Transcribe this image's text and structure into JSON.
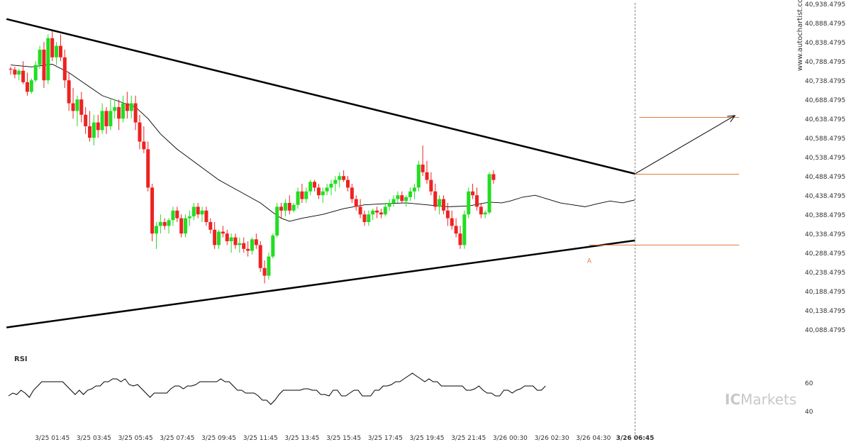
{
  "watermark": "www.autochartist.com",
  "brand": {
    "ic": "IC",
    "rest": "Markets",
    "color": "#c8c8c8"
  },
  "colors": {
    "bull": "#22dd22",
    "bear": "#ee2222",
    "trendline": "#000000",
    "level": "#e07b39",
    "ma": "#000000",
    "rsi": "#000000",
    "current_marker": "#888888"
  },
  "chart_data": {
    "type": "candlestick",
    "title": "",
    "ylim": [
      40080,
      40940
    ],
    "y_ticks": [
      "40,938.4795",
      "40,888.4795",
      "40,838.4795",
      "40,788.4795",
      "40,738.4795",
      "40,688.4795",
      "40,638.4795",
      "40,588.4795",
      "40,538.4795",
      "40,488.4795",
      "40,438.4795",
      "40,388.4795",
      "40,338.4795",
      "40,288.4795",
      "40,238.4795",
      "40,188.4795",
      "40,138.4795",
      "40,088.4795"
    ],
    "y_tick_values": [
      40938.4795,
      40888.4795,
      40838.4795,
      40788.4795,
      40738.4795,
      40688.4795,
      40638.4795,
      40588.4795,
      40538.4795,
      40488.4795,
      40438.4795,
      40388.4795,
      40338.4795,
      40288.4795,
      40238.4795,
      40188.4795,
      40138.4795,
      40088.4795
    ],
    "x_labels": [
      "3/25 01:45",
      "3/25 03:45",
      "3/25 05:45",
      "3/25 07:45",
      "3/25 09:45",
      "3/25 11:45",
      "3/25 13:45",
      "3/25 15:45",
      "3/25 17:45",
      "3/25 19:45",
      "3/25 21:45",
      "3/26 00:30",
      "3/26 02:30",
      "3/26 04:30",
      "3/26 06:45"
    ],
    "x_label_index": [
      10,
      20,
      30,
      40,
      50,
      60,
      70,
      80,
      90,
      100,
      110,
      120,
      130,
      140,
      150
    ],
    "candles": [
      [
        40770,
        40775,
        40755,
        40768
      ],
      [
        40768,
        40775,
        40745,
        40755
      ],
      [
        40755,
        40770,
        40740,
        40765
      ],
      [
        40765,
        40790,
        40730,
        40735
      ],
      [
        40735,
        40760,
        40700,
        40710
      ],
      [
        40710,
        40745,
        40705,
        40740
      ],
      [
        40740,
        40790,
        40735,
        40780
      ],
      [
        40780,
        40830,
        40770,
        40820
      ],
      [
        40820,
        40840,
        40720,
        40740
      ],
      [
        40740,
        40860,
        40730,
        40850
      ],
      [
        40850,
        40870,
        40790,
        40800
      ],
      [
        40800,
        40840,
        40780,
        40830
      ],
      [
        40830,
        40860,
        40790,
        40800
      ],
      [
        40800,
        40820,
        40720,
        40740
      ],
      [
        40740,
        40760,
        40660,
        40680
      ],
      [
        40680,
        40720,
        40640,
        40660
      ],
      [
        40660,
        40700,
        40620,
        40690
      ],
      [
        40690,
        40710,
        40630,
        40650
      ],
      [
        40650,
        40670,
        40600,
        40620
      ],
      [
        40620,
        40660,
        40580,
        40590
      ],
      [
        40590,
        40650,
        40570,
        40630
      ],
      [
        40630,
        40650,
        40590,
        40610
      ],
      [
        40610,
        40680,
        40600,
        40660
      ],
      [
        40660,
        40670,
        40600,
        40620
      ],
      [
        40620,
        40690,
        40610,
        40660
      ],
      [
        40660,
        40690,
        40640,
        40670
      ],
      [
        40670,
        40690,
        40610,
        40640
      ],
      [
        40640,
        40700,
        40630,
        40680
      ],
      [
        40680,
        40710,
        40640,
        40660
      ],
      [
        40660,
        40700,
        40640,
        40680
      ],
      [
        40680,
        40700,
        40610,
        40630
      ],
      [
        40630,
        40650,
        40560,
        40580
      ],
      [
        40580,
        40620,
        40550,
        40560
      ],
      [
        40560,
        40580,
        40450,
        40460
      ],
      [
        40460,
        40470,
        40320,
        40340
      ],
      [
        40340,
        40370,
        40300,
        40360
      ],
      [
        40360,
        40390,
        40340,
        40370
      ],
      [
        40370,
        40380,
        40350,
        40360
      ],
      [
        40360,
        40380,
        40340,
        40375
      ],
      [
        40375,
        40410,
        40360,
        40400
      ],
      [
        40400,
        40410,
        40370,
        40380
      ],
      [
        40380,
        40390,
        40330,
        40340
      ],
      [
        40340,
        40390,
        40330,
        40380
      ],
      [
        40380,
        40400,
        40360,
        40385
      ],
      [
        40385,
        40420,
        40375,
        40410
      ],
      [
        40410,
        40420,
        40380,
        40390
      ],
      [
        40390,
        40410,
        40370,
        40400
      ],
      [
        40400,
        40410,
        40360,
        40370
      ],
      [
        40370,
        40380,
        40340,
        40350
      ],
      [
        40350,
        40370,
        40300,
        40310
      ],
      [
        40310,
        40350,
        40300,
        40345
      ],
      [
        40345,
        40360,
        40330,
        40340
      ],
      [
        40340,
        40350,
        40310,
        40320
      ],
      [
        40320,
        40340,
        40290,
        40330
      ],
      [
        40330,
        40340,
        40300,
        40310
      ],
      [
        40310,
        40330,
        40290,
        40315
      ],
      [
        40315,
        40330,
        40290,
        40300
      ],
      [
        40300,
        40320,
        40280,
        40295
      ],
      [
        40295,
        40330,
        40285,
        40325
      ],
      [
        40325,
        40340,
        40300,
        40310
      ],
      [
        40310,
        40320,
        40240,
        40250
      ],
      [
        40250,
        40270,
        40210,
        40230
      ],
      [
        40230,
        40290,
        40220,
        40280
      ],
      [
        40280,
        40340,
        40275,
        40335
      ],
      [
        40335,
        40420,
        40330,
        40410
      ],
      [
        40410,
        40420,
        40380,
        40400
      ],
      [
        40400,
        40430,
        40385,
        40420
      ],
      [
        40420,
        40440,
        40390,
        40400
      ],
      [
        40400,
        40420,
        40395,
        40415
      ],
      [
        40415,
        40460,
        40405,
        40450
      ],
      [
        40450,
        40470,
        40420,
        40430
      ],
      [
        40430,
        40460,
        40420,
        40450
      ],
      [
        40450,
        40480,
        40440,
        40475
      ],
      [
        40475,
        40480,
        40450,
        40460
      ],
      [
        40460,
        40470,
        40430,
        40440
      ],
      [
        40440,
        40460,
        40420,
        40450
      ],
      [
        40450,
        40470,
        40440,
        40460
      ],
      [
        40460,
        40480,
        40440,
        40470
      ],
      [
        40470,
        40490,
        40450,
        40480
      ],
      [
        40480,
        40500,
        40460,
        40490
      ],
      [
        40490,
        40505,
        40475,
        40480
      ],
      [
        40480,
        40490,
        40450,
        40460
      ],
      [
        40460,
        40470,
        40420,
        40430
      ],
      [
        40430,
        40440,
        40400,
        40410
      ],
      [
        40410,
        40430,
        40380,
        40390
      ],
      [
        40390,
        40400,
        40360,
        40370
      ],
      [
        40370,
        40400,
        40360,
        40390
      ],
      [
        40390,
        40405,
        40375,
        40400
      ],
      [
        40400,
        40410,
        40380,
        40395
      ],
      [
        40395,
        40405,
        40380,
        40390
      ],
      [
        40390,
        40420,
        40385,
        40410
      ],
      [
        40410,
        40430,
        40400,
        40420
      ],
      [
        40420,
        40440,
        40410,
        40430
      ],
      [
        40430,
        40450,
        40420,
        40440
      ],
      [
        40440,
        40450,
        40420,
        40425
      ],
      [
        40425,
        40440,
        40410,
        40435
      ],
      [
        40435,
        40460,
        40425,
        40450
      ],
      [
        40450,
        40470,
        40430,
        40460
      ],
      [
        40460,
        40530,
        40450,
        40520
      ],
      [
        40520,
        40570,
        40490,
        40500
      ],
      [
        40500,
        40530,
        40470,
        40480
      ],
      [
        40480,
        40500,
        40440,
        40450
      ],
      [
        40450,
        40470,
        40400,
        40410
      ],
      [
        40410,
        40440,
        40390,
        40430
      ],
      [
        40430,
        40440,
        40390,
        40400
      ],
      [
        40400,
        40420,
        40360,
        40380
      ],
      [
        40380,
        40400,
        40350,
        40360
      ],
      [
        40360,
        40380,
        40330,
        40340
      ],
      [
        40340,
        40360,
        40300,
        40310
      ],
      [
        40310,
        40400,
        40300,
        40390
      ],
      [
        40390,
        40460,
        40380,
        40450
      ],
      [
        40450,
        40470,
        40430,
        40440
      ],
      [
        40440,
        40460,
        40400,
        40410
      ],
      [
        40410,
        40420,
        40380,
        40390
      ],
      [
        40390,
        40400,
        40380,
        40395
      ],
      [
        40395,
        40500,
        40390,
        40495
      ],
      [
        40495,
        40505,
        40470,
        40480
      ]
    ],
    "moving_average": [
      [
        0,
        40780
      ],
      [
        5,
        40775
      ],
      [
        10,
        40782
      ],
      [
        14,
        40760
      ],
      [
        18,
        40730
      ],
      [
        22,
        40700
      ],
      [
        26,
        40685
      ],
      [
        30,
        40670
      ],
      [
        33,
        40640
      ],
      [
        36,
        40600
      ],
      [
        40,
        40560
      ],
      [
        45,
        40520
      ],
      [
        50,
        40480
      ],
      [
        55,
        40450
      ],
      [
        60,
        40420
      ],
      [
        63,
        40395
      ],
      [
        65,
        40380
      ],
      [
        67,
        40372
      ],
      [
        70,
        40380
      ],
      [
        75,
        40390
      ],
      [
        80,
        40405
      ],
      [
        85,
        40415
      ],
      [
        90,
        40418
      ],
      [
        95,
        40420
      ],
      [
        100,
        40415
      ],
      [
        105,
        40410
      ],
      [
        110,
        40412
      ],
      [
        115,
        40422
      ],
      [
        118,
        40420
      ],
      [
        120,
        40425
      ],
      [
        123,
        40435
      ],
      [
        126,
        40440
      ],
      [
        129,
        40430
      ],
      [
        132,
        40420
      ],
      [
        135,
        40415
      ],
      [
        138,
        40410
      ],
      [
        141,
        40418
      ],
      [
        144,
        40425
      ],
      [
        147,
        40420
      ],
      [
        150,
        40428
      ]
    ],
    "trendlines": [
      {
        "from": [
          -1,
          40900
        ],
        "to": [
          150,
          40496
        ]
      },
      {
        "from": [
          -1,
          40095
        ],
        "to": [
          150,
          40322
        ]
      }
    ],
    "levels": [
      {
        "value": 40643,
        "from": 151,
        "to": 175
      },
      {
        "value": 40495,
        "from": 150,
        "to": 175
      },
      {
        "value": 40310,
        "from": 139,
        "to": 175
      }
    ],
    "forecast_arrow": {
      "from": [
        150,
        40496
      ],
      "to": [
        174,
        40648
      ]
    },
    "current_index": 150,
    "anchor_label": {
      "text": "A",
      "index": 139,
      "value": 40278
    },
    "rsi": {
      "label": "RSI",
      "ylim": [
        35,
        70
      ],
      "ticks": [
        "60",
        "40"
      ],
      "tick_values": [
        60,
        40
      ],
      "values": [
        51,
        53,
        52,
        55,
        53,
        50,
        55,
        58,
        61,
        61,
        61,
        61,
        61,
        61,
        58,
        55,
        52,
        55,
        52,
        55,
        56,
        58,
        58,
        61,
        61,
        63,
        63,
        61,
        63,
        59,
        58,
        59,
        56,
        53,
        50,
        53,
        53,
        53,
        53,
        56,
        58,
        58,
        56,
        58,
        58,
        59,
        61,
        61,
        61,
        61,
        61,
        63,
        61,
        61,
        58,
        55,
        55,
        53,
        53,
        53,
        51,
        48,
        48,
        45,
        48,
        52,
        55,
        55,
        55,
        55,
        55,
        56,
        56,
        55,
        55,
        52,
        52,
        51,
        55,
        55,
        51,
        51,
        53,
        55,
        55,
        51,
        51,
        51,
        55,
        55,
        58,
        58,
        59,
        61,
        61,
        63,
        65,
        67,
        65,
        63,
        61,
        63,
        61,
        61,
        58,
        58,
        58,
        58,
        58,
        58,
        55,
        55,
        56,
        58,
        55,
        53,
        53,
        51,
        51,
        55,
        55,
        53,
        55,
        56,
        58,
        58,
        58,
        55,
        55,
        58
      ]
    }
  }
}
